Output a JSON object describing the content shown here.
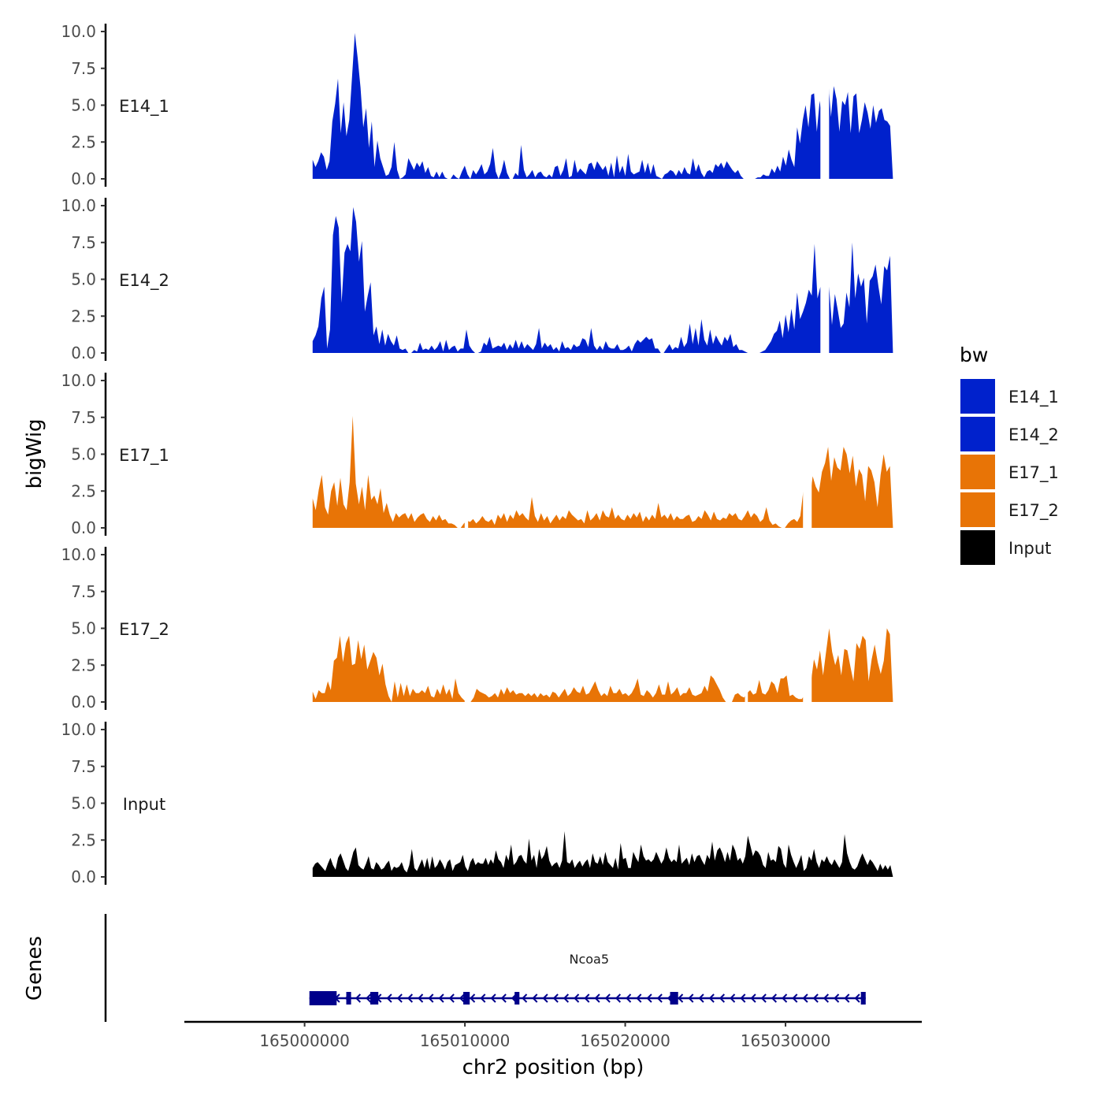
{
  "chart_data": {
    "type": "area",
    "ylabel": "bigWig",
    "xlabel": "chr2 position (bp)",
    "ylim": [
      0,
      10
    ],
    "yticks": [
      "0.0",
      "2.5",
      "5.0",
      "7.5",
      "10.0"
    ],
    "xlim": [
      164992500,
      165038500
    ],
    "xticks": [
      165000000,
      165010000,
      165020000,
      165030000
    ],
    "xtick_labels": [
      "165000000",
      "165010000",
      "165020000",
      "165030000"
    ],
    "x_start": 165000500,
    "x_end": 165036700,
    "tracks": [
      {
        "name": "E14_1",
        "label": "E14_1",
        "color": "#0021CC",
        "values": [
          1.3,
          0.8,
          1.2,
          1.8,
          1.5,
          0.6,
          1.2,
          3.9,
          5.1,
          6.8,
          3.1,
          5.2,
          2.9,
          4.0,
          6.9,
          9.9,
          8.2,
          6.2,
          3.5,
          4.8,
          2.1,
          3.9,
          0.8,
          2.6,
          1.4,
          0.8,
          0.2,
          0.3,
          0.8,
          2.5,
          0.6,
          0,
          0.1,
          0.3,
          1.4,
          1.0,
          0.6,
          1.1,
          0.8,
          1.2,
          0.4,
          0.8,
          0.2,
          0.1,
          0.5,
          0.1,
          0.5,
          0.1,
          0,
          0,
          0.3,
          0.1,
          0,
          0.5,
          0.9,
          0.3,
          0,
          0.6,
          0.3,
          0.6,
          1.0,
          0.3,
          0.5,
          1.0,
          2.1,
          0.5,
          0,
          0.5,
          1.3,
          0.4,
          0,
          0,
          0.4,
          0.2,
          2.3,
          0.6,
          0.1,
          0.3,
          0.6,
          0.1,
          0.4,
          0.5,
          0.2,
          0.1,
          0.3,
          0.1,
          0.8,
          0.9,
          0.2,
          0.6,
          1.4,
          0.1,
          0.2,
          1.3,
          0.4,
          0.7,
          0.5,
          0.3,
          1.0,
          1.1,
          0.6,
          1.2,
          0.9,
          0.6,
          0.9,
          0.2,
          1.1,
          0.1,
          1.6,
          0.4,
          0.9,
          0.2,
          1.7,
          0.5,
          0.3,
          0.4,
          0.5,
          1.3,
          0.4,
          1.1,
          0.3,
          1.0,
          0.2,
          0.1,
          0,
          0.3,
          0.4,
          0.6,
          0.5,
          0.2,
          0.6,
          0.3,
          0.8,
          0.4,
          0.3,
          1.4,
          0.5,
          1.0,
          0.4,
          0.1,
          0.5,
          0.6,
          0.4,
          1.0,
          0.8,
          1.1,
          0.7,
          1.2,
          0.9,
          0.6,
          0.4,
          0.6,
          0.2,
          0,
          0,
          0,
          0,
          0,
          0.1,
          0.1,
          0.3,
          0.2,
          0.2,
          0.7,
          0.4,
          0.9,
          0.5,
          1.5,
          0.9,
          2.0,
          1.3,
          0.8,
          3.5,
          2.4,
          4.0,
          5.0,
          3.5,
          5.7,
          5.8,
          3.2,
          5.3,
          3.7,
          5.5,
          6.8,
          4.2,
          6.3,
          5.4,
          3.2,
          5.3,
          5.0,
          5.9,
          3.1,
          5.6,
          5.8,
          3.1,
          4.0,
          5.2,
          4.5,
          3.4,
          5.0,
          3.8,
          4.6,
          4.8,
          4.0,
          3.9,
          3.6,
          0
        ],
        "gaps": [
          [
            1.74,
            1.76
          ],
          [
            0.875,
            0.89
          ]
        ]
      },
      {
        "name": "E14_2",
        "label": "E14_2",
        "color": "#0021CC",
        "values": [
          0.8,
          1.2,
          1.8,
          3.7,
          4.5,
          0.3,
          1.6,
          8.0,
          9.3,
          8.5,
          3.4,
          6.8,
          7.4,
          6.9,
          9.9,
          8.9,
          6.2,
          7.6,
          2.8,
          3.9,
          4.8,
          1.2,
          1.8,
          0.6,
          1.6,
          0.5,
          1.3,
          0.8,
          0.5,
          1.2,
          0.3,
          0.2,
          0.3,
          0,
          0,
          0.2,
          0.1,
          0.7,
          0.2,
          0.3,
          0.2,
          0.5,
          0.2,
          0.4,
          0.8,
          0.1,
          0.9,
          0.2,
          0.4,
          0.5,
          0.1,
          0.3,
          0.3,
          1.6,
          0.5,
          0.2,
          0,
          0,
          0.1,
          0.7,
          0.5,
          1.1,
          0.3,
          0.4,
          0.5,
          0.4,
          0.7,
          0.2,
          0.6,
          0.3,
          0.9,
          0.3,
          0.8,
          0.3,
          0.6,
          0.4,
          0.2,
          0.6,
          1.7,
          0.3,
          0.7,
          0.4,
          0.6,
          0.2,
          0.4,
          0.1,
          0.8,
          0.3,
          0.4,
          0.2,
          0.6,
          0.4,
          0.5,
          1.0,
          0.9,
          0.4,
          1.7,
          0.5,
          0.2,
          0.5,
          0.2,
          0.8,
          0.4,
          0.3,
          0.3,
          0.6,
          0.2,
          0.2,
          0.3,
          0.5,
          0.1,
          0.6,
          0.9,
          0.7,
          0.9,
          1.1,
          0.9,
          1.0,
          0.3,
          0.3,
          0,
          0,
          0.3,
          0.6,
          0.2,
          0.4,
          0.3,
          1.1,
          0.4,
          0.7,
          2.0,
          0.6,
          1.7,
          0.5,
          2.3,
          0.9,
          0.5,
          1.6,
          0.6,
          1.2,
          0.8,
          0.5,
          1.1,
          0.8,
          1.3,
          0.4,
          0.6,
          0.2,
          0.2,
          0.1,
          0,
          0,
          0,
          0,
          0,
          0.1,
          0.2,
          0.5,
          0.8,
          1.3,
          1.5,
          2.2,
          1.0,
          2.6,
          1.4,
          3.0,
          1.6,
          4.1,
          2.3,
          2.8,
          3.4,
          4.3,
          3.9,
          7.4,
          3.7,
          4.5,
          2.0,
          3.3,
          4.5,
          1.9,
          4.0,
          2.9,
          1.7,
          2.0,
          4.1,
          3.1,
          7.5,
          3.7,
          5.4,
          4.5,
          5.1,
          2.0,
          4.9,
          5.2,
          6.0,
          4.5,
          3.3,
          5.9,
          5.6,
          6.6,
          0
        ],
        "gaps": [
          [
            0.875,
            0.89
          ]
        ]
      },
      {
        "name": "E17_1",
        "label": "E17_1",
        "color": "#E87406",
        "values": [
          2.0,
          1.2,
          2.6,
          3.6,
          1.4,
          0.9,
          2.5,
          3.1,
          1.5,
          3.4,
          1.6,
          1.2,
          3.1,
          7.6,
          3.0,
          1.6,
          2.8,
          1.2,
          3.6,
          1.9,
          2.2,
          1.6,
          2.7,
          1.0,
          1.7,
          0.9,
          0.4,
          1.0,
          0.7,
          0.9,
          1.0,
          0.6,
          1.0,
          0.4,
          0.7,
          0.9,
          1.0,
          0.6,
          0.4,
          0.8,
          0.5,
          0.9,
          0.5,
          0.6,
          0.3,
          0.3,
          0.2,
          0,
          0,
          0.3,
          0.5,
          0.4,
          0.6,
          0.3,
          0.5,
          0.8,
          0.5,
          0.4,
          0.6,
          0.2,
          0.9,
          0.6,
          1.0,
          0.4,
          0.9,
          0.6,
          1.2,
          0.8,
          1.0,
          0.7,
          0.5,
          2.1,
          0.8,
          0.4,
          1.0,
          0.5,
          0.8,
          0.3,
          0.6,
          0.9,
          0.5,
          0.8,
          0.6,
          1.2,
          0.9,
          0.7,
          0.5,
          0.6,
          0.3,
          1.2,
          0.5,
          0.7,
          1.0,
          0.5,
          1.2,
          0.8,
          0.7,
          1.4,
          0.6,
          0.9,
          0.6,
          0.5,
          0.9,
          0.6,
          1.0,
          0.7,
          1.1,
          0.4,
          0.8,
          0.5,
          0.9,
          0.6,
          1.7,
          0.7,
          0.9,
          0.6,
          1.0,
          0.5,
          0.8,
          0.6,
          0.6,
          0.8,
          0.9,
          0.4,
          0.5,
          0.8,
          0.6,
          1.2,
          0.9,
          0.5,
          1.1,
          0.6,
          0.5,
          0.7,
          0.6,
          1.0,
          0.8,
          1.0,
          0.6,
          0.5,
          0.8,
          1.2,
          0.7,
          1.0,
          0.8,
          0.4,
          0.6,
          1.4,
          0.5,
          0.2,
          0.3,
          0.1,
          0,
          0,
          0.3,
          0.5,
          0.6,
          0.4,
          0.8,
          2.6,
          2.8,
          1.8,
          3.5,
          2.8,
          2.4,
          3.8,
          4.4,
          5.5,
          3.2,
          4.8,
          4.1,
          3.9,
          5.5,
          5.0,
          3.7,
          4.9,
          2.8,
          4.0,
          3.6,
          1.8,
          4.2,
          3.9,
          3.1,
          1.4,
          3.6,
          5.0,
          3.8,
          4.2,
          0
        ],
        "gaps": [
          [
            0.262,
            0.268
          ],
          [
            0.845,
            0.86
          ]
        ]
      },
      {
        "name": "E17_2",
        "label": "E17_2",
        "color": "#E87406",
        "values": [
          0.7,
          0.2,
          0.8,
          0.6,
          0.6,
          1.4,
          0.8,
          2.8,
          3.0,
          4.5,
          2.7,
          4.0,
          4.5,
          2.5,
          2.6,
          4.2,
          2.9,
          3.9,
          2.2,
          2.8,
          3.4,
          3.0,
          1.8,
          2.6,
          1.2,
          0.4,
          0,
          1.4,
          0.3,
          1.3,
          0.4,
          1.2,
          0.4,
          0.9,
          0.6,
          0.6,
          0.8,
          0.6,
          1.1,
          0.4,
          0.3,
          0.9,
          0.5,
          1.2,
          0.5,
          0.9,
          0.2,
          1.6,
          0.6,
          0.3,
          0.1,
          0,
          0,
          0.3,
          0.9,
          0.7,
          0.6,
          0.5,
          0.3,
          0.4,
          0.6,
          0.3,
          0.9,
          0.5,
          1.0,
          0.6,
          0.8,
          0.5,
          0.6,
          0.6,
          0.4,
          0.6,
          0.4,
          0.6,
          0.3,
          0.6,
          0.4,
          0.5,
          0.3,
          0.7,
          0.6,
          0.3,
          0.6,
          0.9,
          0.4,
          0.6,
          1.0,
          0.7,
          0.6,
          1.1,
          0.5,
          0.6,
          1.0,
          1.4,
          0.8,
          0.4,
          0.6,
          0.4,
          1.1,
          0.6,
          0.6,
          0.9,
          0.5,
          0.6,
          0.4,
          0.6,
          1.0,
          1.6,
          0.5,
          0.4,
          0.8,
          0.6,
          0.3,
          0.6,
          1.2,
          0.5,
          0.5,
          1.4,
          0.5,
          0.7,
          1.0,
          0.4,
          0.6,
          0.6,
          1.0,
          0.5,
          0.4,
          0.5,
          0.6,
          1.1,
          0.7,
          1.8,
          1.6,
          1.2,
          0.8,
          0.3,
          0,
          0,
          0,
          0.5,
          0.6,
          0.4,
          0.3,
          0.6,
          0.8,
          0.5,
          0.6,
          1.5,
          0.6,
          0.5,
          0.8,
          1.4,
          1.2,
          0.6,
          1.6,
          1.6,
          1.8,
          0.4,
          0.5,
          0.3,
          0.2,
          0.2,
          0.5,
          0.9,
          1.3,
          2.9,
          2.2,
          3.5,
          1.8,
          3.4,
          5.0,
          3.4,
          2.5,
          3.2,
          1.8,
          3.6,
          3.5,
          2.4,
          1.4,
          4.0,
          3.6,
          4.5,
          4.2,
          1.4,
          2.9,
          3.9,
          2.7,
          1.9,
          2.8,
          5.0,
          4.6,
          0
        ],
        "gaps": [
          [
            0.262,
            0.27
          ],
          [
            0.745,
            0.75
          ],
          [
            0.845,
            0.86
          ]
        ]
      },
      {
        "name": "Input",
        "label": "Input",
        "color": "#000000",
        "values": [
          0.6,
          0.9,
          1.0,
          0.8,
          0.6,
          0.4,
          0.9,
          1.3,
          0.8,
          0.5,
          1.3,
          1.6,
          1.1,
          0.6,
          0.4,
          1.0,
          1.7,
          2.0,
          0.8,
          0.6,
          0.5,
          0.9,
          1.4,
          0.6,
          0.5,
          1.0,
          0.8,
          0.5,
          0.6,
          0.9,
          1.1,
          0.4,
          0.7,
          0.6,
          0.7,
          1.0,
          0.5,
          0.3,
          0.8,
          1.9,
          0.6,
          0.4,
          0.8,
          1.2,
          0.6,
          1.3,
          0.5,
          1.4,
          0.6,
          0.8,
          1.2,
          0.9,
          0.5,
          1.0,
          1.2,
          0.4,
          0.8,
          0.9,
          1.0,
          1.5,
          0.7,
          0.4,
          1.0,
          1.3,
          0.8,
          1.0,
          0.9,
          0.9,
          1.3,
          0.8,
          1.2,
          0.9,
          1.8,
          1.2,
          1.0,
          0.6,
          1.5,
          1.1,
          2.2,
          0.8,
          1.0,
          1.4,
          1.5,
          1.1,
          0.9,
          2.6,
          1.1,
          1.5,
          0.6,
          1.9,
          1.2,
          1.5,
          2.1,
          1.1,
          0.7,
          0.9,
          1.0,
          0.6,
          1.1,
          3.1,
          1.0,
          0.9,
          1.2,
          0.6,
          0.9,
          1.1,
          0.7,
          1.0,
          1.2,
          0.6,
          1.6,
          1.0,
          0.9,
          1.4,
          0.8,
          1.7,
          1.0,
          0.8,
          0.6,
          1.3,
          0.5,
          2.3,
          1.2,
          1.3,
          0.6,
          0.6,
          1.7,
          1.3,
          1.0,
          2.2,
          1.4,
          1.1,
          1.2,
          1.0,
          1.2,
          1.7,
          1.3,
          0.9,
          1.2,
          2.0,
          1.3,
          1.0,
          1.2,
          1.0,
          2.2,
          0.9,
          1.1,
          1.3,
          0.8,
          1.6,
          1.0,
          1.4,
          1.5,
          1.1,
          0.8,
          1.5,
          1.2,
          2.4,
          1.1,
          1.8,
          2.0,
          1.6,
          1.0,
          1.7,
          1.1,
          2.2,
          1.8,
          1.1,
          1.3,
          0.9,
          1.4,
          2.8,
          2.1,
          1.4,
          1.8,
          1.7,
          1.4,
          0.8,
          0.6,
          1.7,
          1.1,
          1.2,
          1.0,
          2.1,
          1.9,
          0.9,
          0.6,
          2.2,
          1.5,
          1.0,
          0.6,
          1.0,
          1.5,
          0.4,
          0.6,
          1.4,
          1.1,
          1.9,
          1.0,
          0.6,
          1.2,
          1.0,
          1.4,
          1.0,
          0.8,
          1.2,
          0.9,
          0.6,
          1.0,
          2.9,
          1.6,
          1.0,
          0.6,
          0.5,
          0.7,
          1.2,
          1.6,
          1.2,
          0.8,
          1.2,
          1.0,
          0.7,
          0.4,
          0.9,
          0.5,
          0.8,
          0.5,
          0.8,
          0
        ],
        "gaps": []
      }
    ],
    "genes": {
      "title": "Genes",
      "name": "Ncoa5",
      "strand": "-",
      "start": 165000300,
      "end": 165035000,
      "exons": [
        [
          165000300,
          165002000
        ],
        [
          165002600,
          165002900
        ],
        [
          165004100,
          165004600
        ],
        [
          165009900,
          165010300
        ],
        [
          165013100,
          165013400
        ],
        [
          165022800,
          165023300
        ],
        [
          165034700,
          165035000
        ]
      ],
      "color": "#00008B"
    },
    "legend": {
      "title": "bw",
      "entries": [
        {
          "label": "E14_1",
          "color": "#0021CC"
        },
        {
          "label": "E14_2",
          "color": "#0021CC"
        },
        {
          "label": "E17_1",
          "color": "#E87406"
        },
        {
          "label": "E17_2",
          "color": "#E87406"
        },
        {
          "label": "Input",
          "color": "#000000"
        }
      ]
    }
  }
}
